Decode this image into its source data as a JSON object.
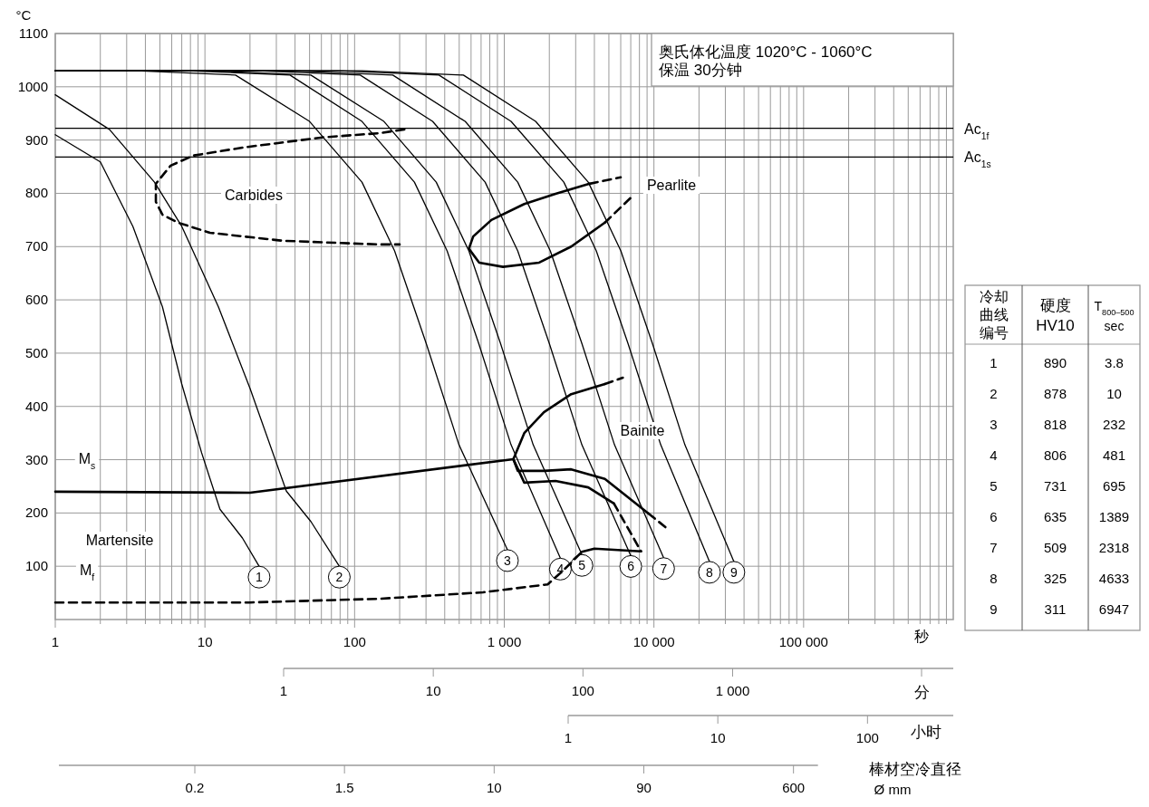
{
  "chart_data": {
    "type": "line",
    "xlabel": "秒",
    "ylabel": "°C",
    "log": "x",
    "grid": true,
    "line_style": "solid",
    "legend": "bottom",
    "xlim": [
      1,
      1000000
    ],
    "ylim": [
      0,
      1100
    ],
    "xticks": [
      1,
      {
        "value": 2,
        "label": null
      },
      {
        "value": 3,
        "label": null
      },
      {
        "value": 4,
        "label": null
      },
      {
        "value": 5,
        "label": null
      },
      {
        "value": 6,
        "label": null
      },
      {
        "value": 7,
        "label": null
      },
      {
        "value": 8,
        "label": null
      },
      {
        "value": 9,
        "label": null
      },
      10,
      {
        "value": 20,
        "label": null
      },
      {
        "value": 30,
        "label": null
      },
      {
        "value": 40,
        "label": null
      },
      {
        "value": 50,
        "label": null
      },
      {
        "value": 60,
        "label": null
      },
      {
        "value": 70,
        "label": null
      },
      {
        "value": 80,
        "label": null
      },
      {
        "value": 90,
        "label": null
      },
      100,
      {
        "value": 200,
        "label": null
      },
      {
        "value": 300,
        "label": null
      },
      {
        "value": 400,
        "label": null
      },
      {
        "value": 500,
        "label": null
      },
      {
        "value": 600,
        "label": null
      },
      {
        "value": 700,
        "label": null
      },
      {
        "value": 800,
        "label": null
      },
      {
        "value": 900,
        "label": null
      },
      {
        "value": 1000,
        "label": "1 000"
      },
      {
        "value": 2000,
        "label": null
      },
      {
        "value": 3000,
        "label": null
      },
      {
        "value": 4000,
        "label": null
      },
      {
        "value": 5000,
        "label": null
      },
      {
        "value": 6000,
        "label": null
      },
      {
        "value": 7000,
        "label": null
      },
      {
        "value": 8000,
        "label": null
      },
      {
        "value": 9000,
        "label": null
      },
      {
        "value": 10000,
        "label": "10 000"
      },
      {
        "value": 20000,
        "label": null
      },
      {
        "value": 30000,
        "label": null
      },
      {
        "value": 40000,
        "label": null
      },
      {
        "value": 50000,
        "label": null
      },
      {
        "value": 60000,
        "label": null
      },
      {
        "value": 70000,
        "label": null
      },
      {
        "value": 80000,
        "label": null
      },
      {
        "value": 90000,
        "label": null
      },
      {
        "value": 100000,
        "label": "100 000"
      },
      {
        "value": 200000,
        "label": null
      },
      {
        "value": 300000,
        "label": null
      },
      {
        "value": 400000,
        "label": null
      },
      {
        "value": 500000,
        "label": null
      },
      {
        "value": 600000,
        "label": null
      },
      {
        "value": 700000,
        "label": null
      },
      {
        "value": 800000,
        "label": null
      },
      {
        "value": 900000,
        "label": null
      }
    ],
    "yticks": [
      100,
      200,
      300,
      400,
      500,
      600,
      700,
      800,
      900,
      1000,
      1100
    ],
    "ref_lines": [
      {
        "axis": "y",
        "value": 922,
        "label": "Ac$_{1f}$",
        "color": "#000000"
      },
      {
        "axis": "y",
        "value": 868,
        "label": "Ac$_{1s}$",
        "color": "#000000"
      }
    ],
    "series": [
      {
        "name": "1",
        "color": "#000000",
        "x": [
          1,
          2,
          3.3,
          5.2,
          7,
          9.5,
          12.6,
          17.8,
          23
        ],
        "values": [
          910,
          859,
          738,
          587,
          442,
          313,
          207,
          153,
          100
        ]
      },
      {
        "name": "2",
        "color": "#000000",
        "x": [
          1,
          2.3,
          4.6,
          7,
          12.3,
          20,
          35,
          51,
          79
        ],
        "values": [
          985,
          920,
          821,
          738,
          587,
          434,
          241,
          184,
          100
        ]
      },
      {
        "name": "3",
        "color": "#000000",
        "x": [
          1,
          3.5,
          16,
          50,
          112,
          185,
          301,
          498,
          1050
        ],
        "values": [
          1030,
          1030,
          1022,
          935,
          821,
          692,
          518,
          328,
          131
        ]
      },
      {
        "name": "4",
        "color": "#000000",
        "x": [
          1,
          7.7,
          37,
          112,
          251,
          415,
          675,
          1110,
          2370
        ],
        "values": [
          1030,
          1030,
          1022,
          935,
          821,
          692,
          518,
          328,
          115
        ]
      },
      {
        "name": "5",
        "color": "#000000",
        "x": [
          1,
          11,
          51,
          157,
          351,
          580,
          944,
          1560,
          3300
        ],
        "values": [
          1030,
          1030,
          1022,
          935,
          821,
          692,
          518,
          328,
          122
        ]
      },
      {
        "name": "6",
        "color": "#000000",
        "x": [
          1,
          23,
          109,
          332,
          745,
          1230,
          2000,
          3300,
          7000
        ],
        "values": [
          1030,
          1030,
          1022,
          935,
          821,
          692,
          518,
          328,
          120
        ]
      },
      {
        "name": "7",
        "color": "#000000",
        "x": [
          1,
          38,
          180,
          548,
          1230,
          2030,
          3300,
          5450,
          11600
        ],
        "values": [
          1030,
          1030,
          1022,
          935,
          821,
          692,
          518,
          328,
          116
        ]
      },
      {
        "name": "8",
        "color": "#000000",
        "x": [
          1,
          77,
          366,
          1110,
          2500,
          4120,
          6710,
          11100,
          23500
        ],
        "values": [
          1030,
          1030,
          1022,
          935,
          821,
          692,
          518,
          328,
          109
        ]
      },
      {
        "name": "9",
        "color": "#000000",
        "x": [
          1,
          112,
          533,
          1620,
          3640,
          6010,
          9770,
          16100,
          34200
        ],
        "values": [
          1030,
          1030,
          1022,
          935,
          821,
          692,
          518,
          328,
          109
        ]
      },
      {
        "color": "#000000",
        "line_style": "dashed",
        "x": [
          215,
          148,
          61,
          18,
          8.4,
          5.9,
          4.7,
          4.7,
          5.2,
          6.6,
          10.8,
          33,
          148,
          200
        ],
        "values": [
          920,
          913,
          905,
          886,
          871,
          852,
          818,
          784,
          760,
          745,
          726,
          711,
          704,
          704
        ]
      },
      {
        "color": "#000000",
        "x": [
          3720,
          2200,
          1360,
          820,
          620,
          580,
          680,
          980,
          1710,
          2800,
          4700
        ],
        "values": [
          818,
          799,
          780,
          750,
          719,
          696,
          670,
          662,
          670,
          700,
          745
        ]
      },
      {
        "color": "#000000",
        "line_style": "dashed",
        "x": [
          3720,
          6000
        ],
        "values": [
          818,
          830
        ]
      },
      {
        "color": "#000000",
        "line_style": "dashed",
        "x": [
          4700,
          7200
        ],
        "values": [
          745,
          795
        ]
      },
      {
        "color": "#000000",
        "x": [
          1,
          20,
          1150
        ],
        "values": [
          240,
          238,
          301
        ]
      },
      {
        "color": "#000000",
        "x": [
          1150,
          1360,
          1840,
          2800,
          4700
        ],
        "values": [
          301,
          350,
          389,
          423,
          442
        ]
      },
      {
        "color": "#000000",
        "line_style": "dashed",
        "x": [
          4700,
          6200
        ],
        "values": [
          442,
          454
        ]
      },
      {
        "color": "#000000",
        "x": [
          1150,
          1230,
          1840,
          2800,
          4700,
          9200
        ],
        "values": [
          301,
          279,
          279,
          282,
          264,
          199
        ]
      },
      {
        "color": "#000000",
        "line_style": "dashed",
        "x": [
          9200,
          12600
        ],
        "values": [
          199,
          168
        ]
      },
      {
        "color": "#000000",
        "x": [
          1150,
          1360,
          2200,
          3640,
          5400
        ],
        "values": [
          301,
          257,
          260,
          248,
          218
        ]
      },
      {
        "color": "#000000",
        "line_style": "dashed",
        "x": [
          5400,
          8200
        ],
        "values": [
          218,
          128
        ]
      },
      {
        "color": "#000000",
        "line_style": "dashed",
        "x": [
          1,
          20,
          148,
          720,
          1950,
          2500,
          3300
        ],
        "values": [
          32,
          32,
          39,
          51,
          66,
          93,
          127
        ]
      },
      {
        "color": "#000000",
        "x": [
          3300,
          4000,
          8200
        ],
        "values": [
          127,
          133,
          128
        ]
      }
    ],
    "annotations": [
      "奥氏体化温度 1020°C - 1060°C",
      "保温 30分钟",
      "Carbides",
      "Pearlite",
      "Bainite",
      "M$_{s}$",
      "Martensite",
      "M$_{f}$",
      "1",
      "10",
      "100",
      "小时",
      "0.2",
      "1.5",
      "10",
      "90",
      "600",
      "棒材空冷直径",
      "Ø mm",
      "冷却曲线编号",
      "硬度 HV10",
      "T$_{800–500}$ sec",
      "1",
      "890",
      "3.8",
      "2",
      "878",
      "10",
      "3",
      "818",
      "232",
      "4",
      "806",
      "481",
      "5",
      "731",
      "695",
      "6",
      "635",
      "1389",
      "7",
      "509",
      "2318",
      "8",
      "325",
      "4633",
      "9",
      "311",
      "6947",
      "1",
      "10",
      "100",
      "1 000",
      "分"
    ]
  }
}
